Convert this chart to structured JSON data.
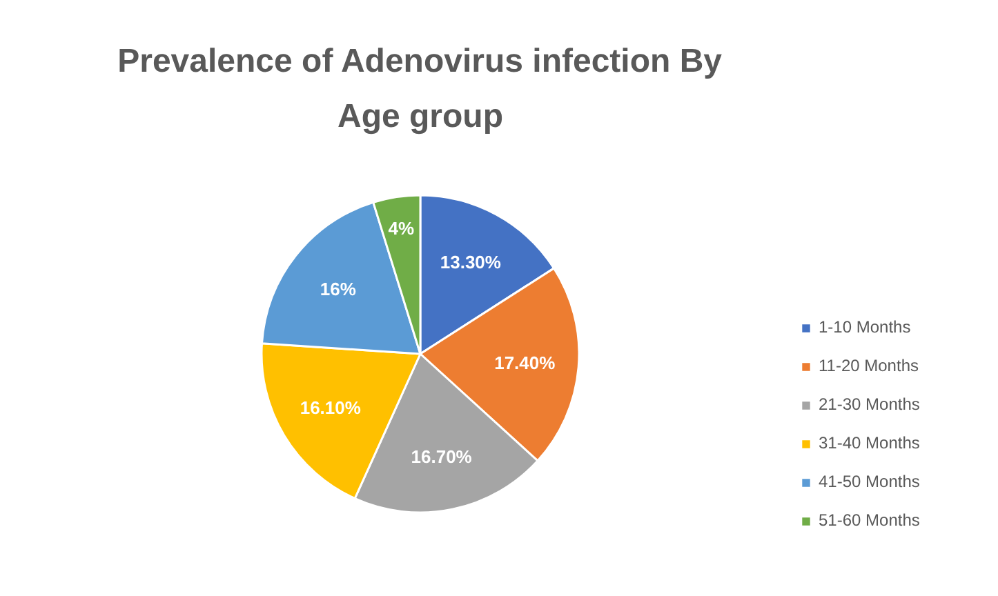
{
  "chart_data": {
    "type": "pie",
    "title": "Prevalence of Adenovirus infection By Age group",
    "categories": [
      "1-10 Months",
      "11-20 Months",
      "21-30 Months",
      "31-40 Months",
      "41-50 Months",
      "51-60 Months"
    ],
    "values": [
      13.3,
      17.4,
      16.7,
      16.1,
      16,
      4
    ],
    "value_labels": [
      "13.30%",
      "17.40%",
      "16.70%",
      "16.10%",
      "16%",
      "4%"
    ],
    "colors": [
      "#4472c4",
      "#ed7d31",
      "#a5a5a5",
      "#ffc000",
      "#5b9bd5",
      "#70ad47"
    ],
    "legend": "right"
  }
}
